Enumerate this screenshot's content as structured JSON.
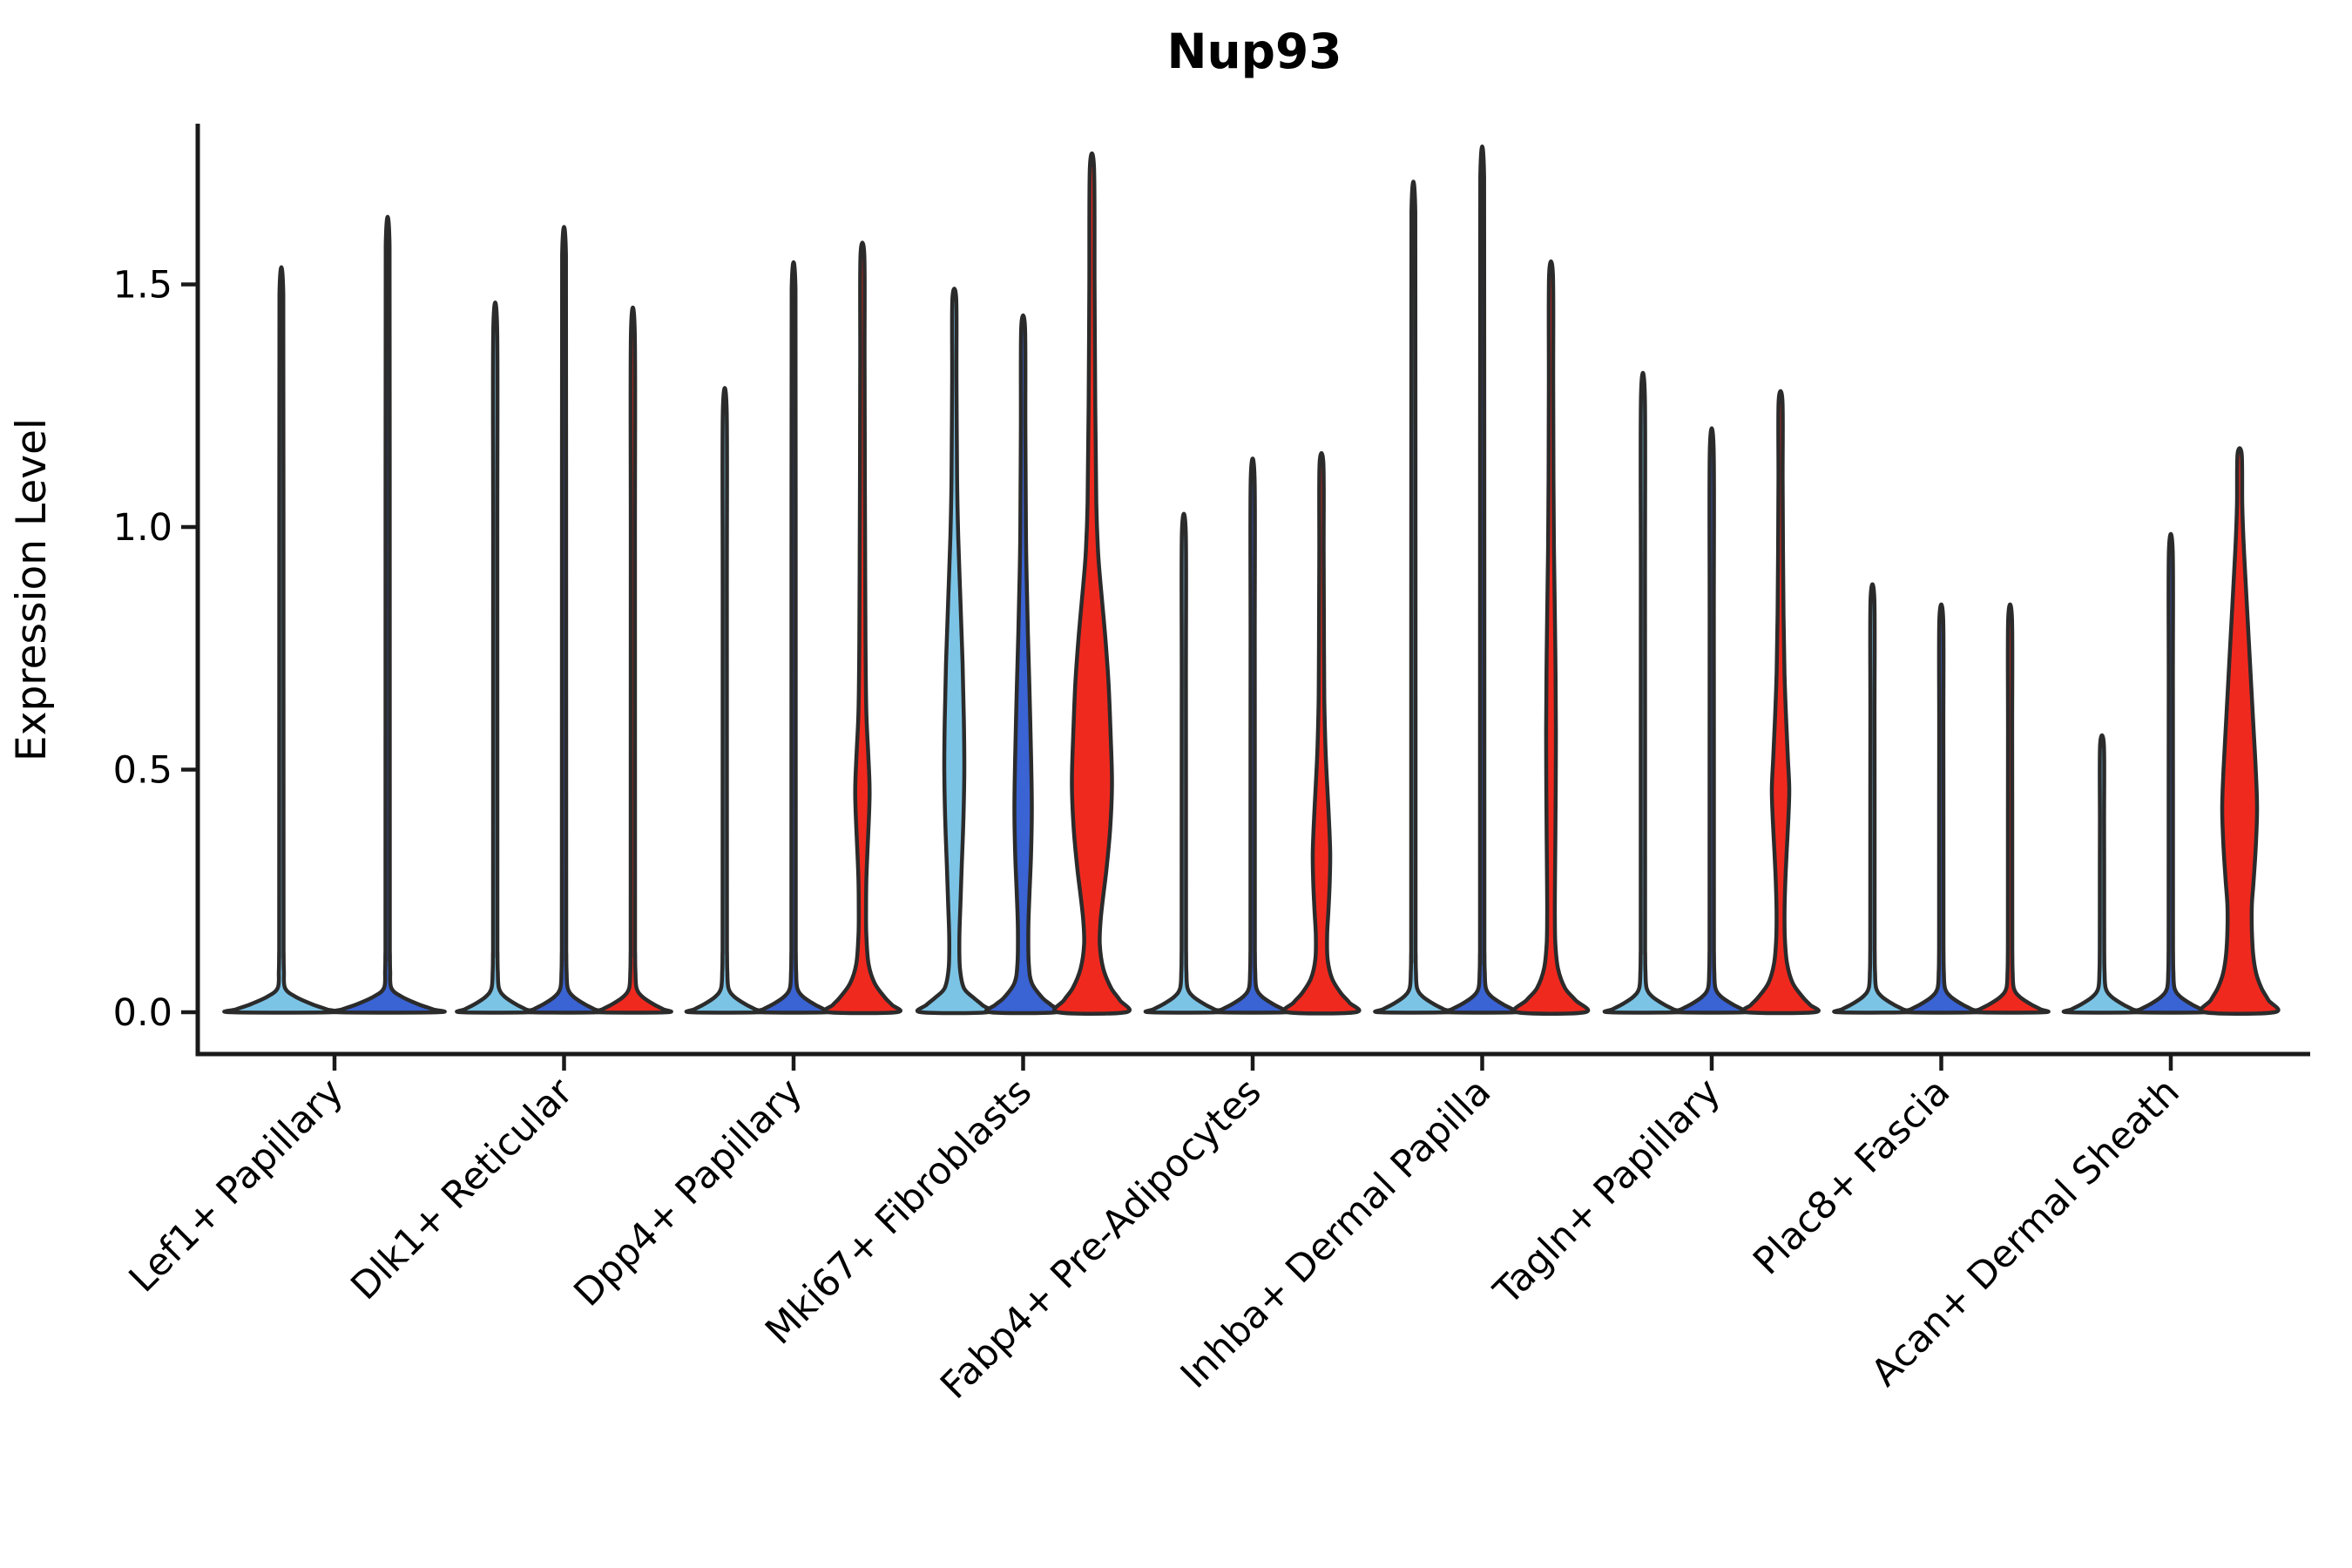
{
  "chart_data": {
    "type": "violin",
    "title": "Nup93",
    "xlabel": "",
    "ylabel": "Expression Level",
    "ytick_labels": [
      "0.0",
      "0.5",
      "1.0",
      "1.5"
    ],
    "ytick_values": [
      0.0,
      0.5,
      1.0,
      1.5
    ],
    "ylim": [
      -0.09,
      1.83
    ],
    "grid": false,
    "legend": "none",
    "outline_color": "#2b2b2b",
    "hue_colors": {
      "light_blue": "#7CC4E6",
      "dark_blue": "#3A63D3",
      "red": "#F0291F"
    },
    "categories": [
      "Lef1+ Papillary",
      "Dlk1+ Reticular",
      "Dpp4+ Papillary",
      "Mki67+ Fibroblasts",
      "Fabp4+ Pre-Adipocytes",
      "Inhba+ Dermal Papilla",
      "Tagln+ Papillary",
      "Plac8+ Fascia",
      "Acan+ Dermal Sheath"
    ],
    "groups": [
      {
        "category": "Lef1+ Papillary",
        "violins": [
          {
            "hue": "light_blue",
            "max_expression": 1.48,
            "shape": "thin"
          },
          {
            "hue": "dark_blue",
            "max_expression": 1.58,
            "shape": "thin"
          }
        ]
      },
      {
        "category": "Dlk1+ Reticular",
        "violins": [
          {
            "hue": "light_blue",
            "max_expression": 1.41,
            "shape": "thin"
          },
          {
            "hue": "dark_blue",
            "max_expression": 1.56,
            "shape": "thin"
          },
          {
            "hue": "red",
            "max_expression": 1.4,
            "shape": "thin"
          }
        ]
      },
      {
        "category": "Dpp4+ Papillary",
        "violins": [
          {
            "hue": "light_blue",
            "max_expression": 1.24,
            "shape": "thin"
          },
          {
            "hue": "dark_blue",
            "max_expression": 1.49,
            "shape": "thin"
          },
          {
            "hue": "red",
            "max_expression": 1.56,
            "shape": "body",
            "profile": [
              [
                1.56,
                2.2
              ],
              [
                1.35,
                2.5
              ],
              [
                1.1,
                2.8
              ],
              [
                0.9,
                3.2
              ],
              [
                0.75,
                3.6
              ],
              [
                0.62,
                4.5
              ],
              [
                0.54,
                6.5
              ],
              [
                0.48,
                8.0
              ],
              [
                0.44,
                8.2
              ],
              [
                0.38,
                7.0
              ],
              [
                0.32,
                5.5
              ],
              [
                0.27,
                4.5
              ],
              [
                0.22,
                4.2
              ],
              [
                0.16,
                4.5
              ],
              [
                0.1,
                7.0
              ],
              [
                0.06,
                14
              ],
              [
                0.03,
                26
              ],
              [
                0.015,
                34
              ],
              [
                0,
                39
              ]
            ]
          }
        ]
      },
      {
        "category": "Mki67+ Fibroblasts",
        "violins": [
          {
            "hue": "light_blue",
            "max_expression": 1.47,
            "shape": "body",
            "profile": [
              [
                1.47,
                2.2
              ],
              [
                1.3,
                2.5
              ],
              [
                1.1,
                3.2
              ],
              [
                0.98,
                4.5
              ],
              [
                0.85,
                7.0
              ],
              [
                0.72,
                9.5
              ],
              [
                0.6,
                11.0
              ],
              [
                0.5,
                11.5
              ],
              [
                0.4,
                10.5
              ],
              [
                0.3,
                8.5
              ],
              [
                0.22,
                7.0
              ],
              [
                0.15,
                5.8
              ],
              [
                0.09,
                6.5
              ],
              [
                0.05,
                11
              ],
              [
                0.03,
                22
              ],
              [
                0.015,
                32
              ],
              [
                0,
                38
              ]
            ]
          },
          {
            "hue": "dark_blue",
            "max_expression": 1.41,
            "shape": "body",
            "profile": [
              [
                1.41,
                2.2
              ],
              [
                1.2,
                2.6
              ],
              [
                1.0,
                3.2
              ],
              [
                0.9,
                4.0
              ],
              [
                0.78,
                5.5
              ],
              [
                0.65,
                7.5
              ],
              [
                0.52,
                9.2
              ],
              [
                0.42,
                10.0
              ],
              [
                0.32,
                9.0
              ],
              [
                0.24,
                7.2
              ],
              [
                0.17,
                6.0
              ],
              [
                0.1,
                6.5
              ],
              [
                0.06,
                10
              ],
              [
                0.03,
                22
              ],
              [
                0.015,
                32
              ],
              [
                0,
                38
              ]
            ]
          },
          {
            "hue": "red",
            "max_expression": 1.74,
            "shape": "body",
            "profile": [
              [
                1.74,
                2.4
              ],
              [
                1.5,
                3.0
              ],
              [
                1.25,
                3.8
              ],
              [
                1.05,
                5.0
              ],
              [
                0.95,
                7.0
              ],
              [
                0.88,
                10.0
              ],
              [
                0.78,
                15.0
              ],
              [
                0.68,
                19.0
              ],
              [
                0.57,
                21.5
              ],
              [
                0.47,
                23.0
              ],
              [
                0.38,
                21.0
              ],
              [
                0.3,
                17.0
              ],
              [
                0.24,
                13.0
              ],
              [
                0.19,
                10.0
              ],
              [
                0.14,
                9.0
              ],
              [
                0.09,
                13
              ],
              [
                0.05,
                22
              ],
              [
                0.025,
                32
              ],
              [
                0,
                39
              ]
            ]
          }
        ]
      },
      {
        "category": "Fabp4+ Pre-Adipocytes",
        "violins": [
          {
            "hue": "light_blue",
            "max_expression": 0.99,
            "shape": "thin"
          },
          {
            "hue": "dark_blue",
            "max_expression": 1.1,
            "shape": "thin"
          },
          {
            "hue": "red",
            "max_expression": 1.13,
            "shape": "body",
            "profile": [
              [
                1.13,
                2.2
              ],
              [
                0.95,
                2.5
              ],
              [
                0.8,
                2.8
              ],
              [
                0.65,
                3.2
              ],
              [
                0.55,
                4.5
              ],
              [
                0.47,
                6.5
              ],
              [
                0.4,
                8.5
              ],
              [
                0.33,
                10.0
              ],
              [
                0.27,
                9.5
              ],
              [
                0.21,
                8.0
              ],
              [
                0.16,
                6.5
              ],
              [
                0.11,
                7.0
              ],
              [
                0.07,
                12
              ],
              [
                0.04,
                22
              ],
              [
                0.02,
                32
              ],
              [
                0,
                39
              ]
            ]
          }
        ]
      },
      {
        "category": "Inhba+ Dermal Papilla",
        "violins": [
          {
            "hue": "light_blue",
            "max_expression": 1.65,
            "shape": "thin"
          },
          {
            "hue": "dark_blue",
            "max_expression": 1.72,
            "shape": "thin"
          },
          {
            "hue": "red",
            "max_expression": 1.52,
            "shape": "body",
            "profile": [
              [
                1.52,
                2.2
              ],
              [
                1.3,
                2.5
              ],
              [
                1.1,
                2.8
              ],
              [
                0.95,
                3.4
              ],
              [
                0.82,
                4.4
              ],
              [
                0.7,
                5.2
              ],
              [
                0.58,
                5.6
              ],
              [
                0.46,
                5.4
              ],
              [
                0.36,
                5.0
              ],
              [
                0.28,
                4.6
              ],
              [
                0.2,
                4.4
              ],
              [
                0.14,
                5.0
              ],
              [
                0.09,
                8.0
              ],
              [
                0.05,
                16
              ],
              [
                0.025,
                28
              ],
              [
                0,
                39
              ]
            ]
          }
        ]
      },
      {
        "category": "Tagln+ Papillary",
        "violins": [
          {
            "hue": "light_blue",
            "max_expression": 1.27,
            "shape": "thin"
          },
          {
            "hue": "dark_blue",
            "max_expression": 1.16,
            "shape": "thin"
          },
          {
            "hue": "red",
            "max_expression": 1.26,
            "shape": "body",
            "profile": [
              [
                1.26,
                2.2
              ],
              [
                1.1,
                2.4
              ],
              [
                0.95,
                2.8
              ],
              [
                0.82,
                3.4
              ],
              [
                0.7,
                4.5
              ],
              [
                0.6,
                6.5
              ],
              [
                0.52,
                8.5
              ],
              [
                0.46,
                10.0
              ],
              [
                0.4,
                9.0
              ],
              [
                0.33,
                7.0
              ],
              [
                0.27,
                5.5
              ],
              [
                0.21,
                4.6
              ],
              [
                0.15,
                5.0
              ],
              [
                0.1,
                7.5
              ],
              [
                0.06,
                14
              ],
              [
                0.03,
                26
              ],
              [
                0.015,
                34
              ],
              [
                0,
                39
              ]
            ]
          }
        ]
      },
      {
        "category": "Plac8+ Fascia",
        "violins": [
          {
            "hue": "light_blue",
            "max_expression": 0.85,
            "shape": "thin"
          },
          {
            "hue": "dark_blue",
            "max_expression": 0.81,
            "shape": "thin"
          },
          {
            "hue": "red",
            "max_expression": 0.81,
            "shape": "thin"
          }
        ]
      },
      {
        "category": "Acan+ Dermal Sheath",
        "violins": [
          {
            "hue": "light_blue",
            "max_expression": 0.55,
            "shape": "thin"
          },
          {
            "hue": "dark_blue",
            "max_expression": 0.95,
            "shape": "thin"
          },
          {
            "hue": "red",
            "max_expression": 1.15,
            "shape": "body",
            "profile": [
              [
                1.15,
                2.4
              ],
              [
                1.05,
                3.0
              ],
              [
                0.97,
                4.5
              ],
              [
                0.9,
                6.5
              ],
              [
                0.8,
                9.5
              ],
              [
                0.7,
                12.5
              ],
              [
                0.6,
                15.5
              ],
              [
                0.5,
                18.5
              ],
              [
                0.42,
                20.0
              ],
              [
                0.34,
                18.5
              ],
              [
                0.27,
                16.0
              ],
              [
                0.22,
                14.0
              ],
              [
                0.17,
                14.0
              ],
              [
                0.12,
                15.5
              ],
              [
                0.08,
                19
              ],
              [
                0.05,
                25
              ],
              [
                0.025,
                33
              ],
              [
                0,
                40
              ]
            ]
          }
        ]
      }
    ]
  }
}
